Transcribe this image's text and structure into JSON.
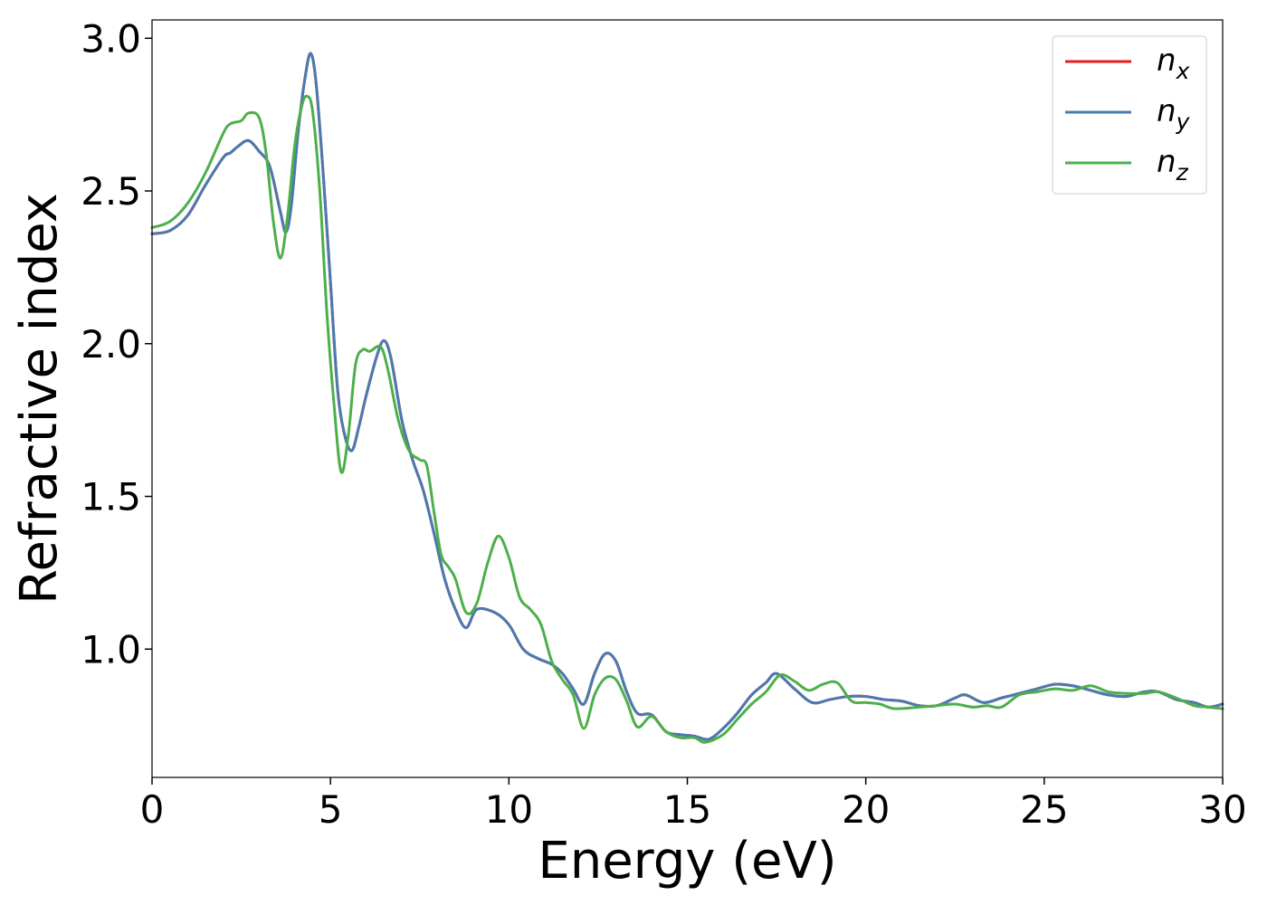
{
  "chart_data": {
    "type": "line",
    "title": "",
    "xlabel": "Energy (eV)",
    "ylabel": "Refractive index",
    "xlim": [
      0,
      30
    ],
    "ylim": [
      0.58,
      3.06
    ],
    "x_ticks": [
      "0",
      "5",
      "10",
      "15",
      "20",
      "25",
      "30"
    ],
    "y_ticks": [
      "1.0",
      "1.5",
      "2.0",
      "2.5",
      "3.0"
    ],
    "grid": false,
    "legend_position": "top-right",
    "series": [
      {
        "name": "n_x",
        "label_base": "n",
        "label_sub": "x",
        "color": "#e41a1c",
        "points": [
          [
            0,
            2.36
          ],
          [
            0.5,
            2.37
          ],
          [
            1.0,
            2.42
          ],
          [
            1.5,
            2.52
          ],
          [
            2.0,
            2.61
          ],
          [
            2.2,
            2.625
          ],
          [
            2.4,
            2.645
          ],
          [
            2.7,
            2.665
          ],
          [
            3.0,
            2.63
          ],
          [
            3.3,
            2.58
          ],
          [
            3.6,
            2.43
          ],
          [
            3.75,
            2.365
          ],
          [
            3.9,
            2.45
          ],
          [
            4.1,
            2.7
          ],
          [
            4.3,
            2.88
          ],
          [
            4.45,
            2.95
          ],
          [
            4.6,
            2.85
          ],
          [
            4.8,
            2.55
          ],
          [
            5.0,
            2.2
          ],
          [
            5.2,
            1.85
          ],
          [
            5.4,
            1.7
          ],
          [
            5.6,
            1.65
          ],
          [
            5.8,
            1.73
          ],
          [
            6.0,
            1.83
          ],
          [
            6.3,
            1.96
          ],
          [
            6.5,
            2.01
          ],
          [
            6.7,
            1.95
          ],
          [
            7.0,
            1.75
          ],
          [
            7.3,
            1.62
          ],
          [
            7.6,
            1.52
          ],
          [
            7.9,
            1.38
          ],
          [
            8.2,
            1.23
          ],
          [
            8.5,
            1.13
          ],
          [
            8.8,
            1.07
          ],
          [
            9.1,
            1.13
          ],
          [
            9.6,
            1.12
          ],
          [
            10.0,
            1.08
          ],
          [
            10.4,
            1.0
          ],
          [
            10.8,
            0.97
          ],
          [
            11.2,
            0.95
          ],
          [
            11.5,
            0.92
          ],
          [
            11.8,
            0.87
          ],
          [
            12.1,
            0.82
          ],
          [
            12.4,
            0.92
          ],
          [
            12.7,
            0.985
          ],
          [
            13.0,
            0.96
          ],
          [
            13.3,
            0.86
          ],
          [
            13.6,
            0.79
          ],
          [
            14.0,
            0.785
          ],
          [
            14.4,
            0.73
          ],
          [
            14.8,
            0.72
          ],
          [
            15.2,
            0.715
          ],
          [
            15.6,
            0.705
          ],
          [
            16.0,
            0.74
          ],
          [
            16.4,
            0.79
          ],
          [
            16.8,
            0.85
          ],
          [
            17.2,
            0.89
          ],
          [
            17.5,
            0.92
          ],
          [
            18.0,
            0.87
          ],
          [
            18.5,
            0.825
          ],
          [
            19.0,
            0.835
          ],
          [
            19.5,
            0.845
          ],
          [
            20.0,
            0.845
          ],
          [
            20.5,
            0.835
          ],
          [
            21.0,
            0.83
          ],
          [
            21.5,
            0.815
          ],
          [
            22.0,
            0.815
          ],
          [
            22.5,
            0.84
          ],
          [
            22.8,
            0.85
          ],
          [
            23.3,
            0.825
          ],
          [
            23.8,
            0.84
          ],
          [
            24.3,
            0.855
          ],
          [
            24.8,
            0.87
          ],
          [
            25.3,
            0.885
          ],
          [
            25.8,
            0.88
          ],
          [
            26.3,
            0.865
          ],
          [
            26.8,
            0.85
          ],
          [
            27.3,
            0.845
          ],
          [
            27.8,
            0.86
          ],
          [
            28.2,
            0.86
          ],
          [
            28.7,
            0.835
          ],
          [
            29.2,
            0.825
          ],
          [
            29.6,
            0.81
          ],
          [
            30.0,
            0.82
          ]
        ]
      },
      {
        "name": "n_y",
        "label_base": "n",
        "label_sub": "y",
        "color": "#4a7ab0",
        "points": [
          [
            0,
            2.36
          ],
          [
            0.5,
            2.37
          ],
          [
            1.0,
            2.42
          ],
          [
            1.5,
            2.52
          ],
          [
            2.0,
            2.61
          ],
          [
            2.2,
            2.625
          ],
          [
            2.4,
            2.645
          ],
          [
            2.7,
            2.665
          ],
          [
            3.0,
            2.63
          ],
          [
            3.3,
            2.58
          ],
          [
            3.6,
            2.43
          ],
          [
            3.75,
            2.365
          ],
          [
            3.9,
            2.45
          ],
          [
            4.1,
            2.7
          ],
          [
            4.3,
            2.88
          ],
          [
            4.45,
            2.95
          ],
          [
            4.6,
            2.85
          ],
          [
            4.8,
            2.55
          ],
          [
            5.0,
            2.2
          ],
          [
            5.2,
            1.85
          ],
          [
            5.4,
            1.7
          ],
          [
            5.6,
            1.65
          ],
          [
            5.8,
            1.73
          ],
          [
            6.0,
            1.83
          ],
          [
            6.3,
            1.96
          ],
          [
            6.5,
            2.01
          ],
          [
            6.7,
            1.95
          ],
          [
            7.0,
            1.75
          ],
          [
            7.3,
            1.62
          ],
          [
            7.6,
            1.52
          ],
          [
            7.9,
            1.38
          ],
          [
            8.2,
            1.23
          ],
          [
            8.5,
            1.13
          ],
          [
            8.8,
            1.07
          ],
          [
            9.1,
            1.13
          ],
          [
            9.6,
            1.12
          ],
          [
            10.0,
            1.08
          ],
          [
            10.4,
            1.0
          ],
          [
            10.8,
            0.97
          ],
          [
            11.2,
            0.95
          ],
          [
            11.5,
            0.92
          ],
          [
            11.8,
            0.87
          ],
          [
            12.1,
            0.82
          ],
          [
            12.4,
            0.92
          ],
          [
            12.7,
            0.985
          ],
          [
            13.0,
            0.96
          ],
          [
            13.3,
            0.86
          ],
          [
            13.6,
            0.79
          ],
          [
            14.0,
            0.785
          ],
          [
            14.4,
            0.73
          ],
          [
            14.8,
            0.72
          ],
          [
            15.2,
            0.715
          ],
          [
            15.6,
            0.705
          ],
          [
            16.0,
            0.74
          ],
          [
            16.4,
            0.79
          ],
          [
            16.8,
            0.85
          ],
          [
            17.2,
            0.89
          ],
          [
            17.5,
            0.92
          ],
          [
            18.0,
            0.87
          ],
          [
            18.5,
            0.825
          ],
          [
            19.0,
            0.835
          ],
          [
            19.5,
            0.845
          ],
          [
            20.0,
            0.845
          ],
          [
            20.5,
            0.835
          ],
          [
            21.0,
            0.83
          ],
          [
            21.5,
            0.815
          ],
          [
            22.0,
            0.815
          ],
          [
            22.5,
            0.84
          ],
          [
            22.8,
            0.85
          ],
          [
            23.3,
            0.825
          ],
          [
            23.8,
            0.84
          ],
          [
            24.3,
            0.855
          ],
          [
            24.8,
            0.87
          ],
          [
            25.3,
            0.885
          ],
          [
            25.8,
            0.88
          ],
          [
            26.3,
            0.865
          ],
          [
            26.8,
            0.85
          ],
          [
            27.3,
            0.845
          ],
          [
            27.8,
            0.86
          ],
          [
            28.2,
            0.86
          ],
          [
            28.7,
            0.835
          ],
          [
            29.2,
            0.825
          ],
          [
            29.6,
            0.81
          ],
          [
            30.0,
            0.82
          ]
        ]
      },
      {
        "name": "n_z",
        "label_base": "n",
        "label_sub": "z",
        "color": "#4daf4a",
        "points": [
          [
            0,
            2.38
          ],
          [
            0.5,
            2.4
          ],
          [
            1.0,
            2.46
          ],
          [
            1.5,
            2.56
          ],
          [
            2.0,
            2.69
          ],
          [
            2.2,
            2.72
          ],
          [
            2.5,
            2.73
          ],
          [
            2.7,
            2.755
          ],
          [
            3.0,
            2.74
          ],
          [
            3.2,
            2.62
          ],
          [
            3.4,
            2.4
          ],
          [
            3.6,
            2.28
          ],
          [
            3.8,
            2.42
          ],
          [
            4.0,
            2.65
          ],
          [
            4.2,
            2.78
          ],
          [
            4.35,
            2.81
          ],
          [
            4.5,
            2.76
          ],
          [
            4.7,
            2.5
          ],
          [
            4.9,
            2.1
          ],
          [
            5.1,
            1.8
          ],
          [
            5.3,
            1.58
          ],
          [
            5.5,
            1.7
          ],
          [
            5.7,
            1.93
          ],
          [
            5.9,
            1.98
          ],
          [
            6.1,
            1.975
          ],
          [
            6.4,
            1.99
          ],
          [
            6.6,
            1.92
          ],
          [
            6.9,
            1.75
          ],
          [
            7.2,
            1.65
          ],
          [
            7.5,
            1.62
          ],
          [
            7.7,
            1.6
          ],
          [
            7.9,
            1.45
          ],
          [
            8.1,
            1.31
          ],
          [
            8.3,
            1.27
          ],
          [
            8.5,
            1.23
          ],
          [
            8.8,
            1.12
          ],
          [
            9.1,
            1.15
          ],
          [
            9.4,
            1.28
          ],
          [
            9.7,
            1.37
          ],
          [
            10.0,
            1.3
          ],
          [
            10.3,
            1.17
          ],
          [
            10.6,
            1.13
          ],
          [
            10.9,
            1.08
          ],
          [
            11.2,
            0.96
          ],
          [
            11.5,
            0.9
          ],
          [
            11.8,
            0.85
          ],
          [
            12.1,
            0.74
          ],
          [
            12.4,
            0.85
          ],
          [
            12.7,
            0.905
          ],
          [
            13.0,
            0.9
          ],
          [
            13.3,
            0.83
          ],
          [
            13.6,
            0.745
          ],
          [
            14.0,
            0.78
          ],
          [
            14.4,
            0.73
          ],
          [
            14.8,
            0.71
          ],
          [
            15.2,
            0.71
          ],
          [
            15.5,
            0.695
          ],
          [
            16.0,
            0.72
          ],
          [
            16.4,
            0.77
          ],
          [
            16.8,
            0.82
          ],
          [
            17.2,
            0.86
          ],
          [
            17.6,
            0.915
          ],
          [
            18.0,
            0.895
          ],
          [
            18.4,
            0.865
          ],
          [
            18.8,
            0.885
          ],
          [
            19.2,
            0.89
          ],
          [
            19.6,
            0.83
          ],
          [
            20.0,
            0.825
          ],
          [
            20.4,
            0.82
          ],
          [
            20.8,
            0.805
          ],
          [
            21.5,
            0.81
          ],
          [
            22.0,
            0.815
          ],
          [
            22.5,
            0.82
          ],
          [
            23.0,
            0.81
          ],
          [
            23.4,
            0.815
          ],
          [
            23.8,
            0.81
          ],
          [
            24.3,
            0.85
          ],
          [
            24.8,
            0.86
          ],
          [
            25.3,
            0.87
          ],
          [
            25.8,
            0.865
          ],
          [
            26.3,
            0.88
          ],
          [
            26.8,
            0.86
          ],
          [
            27.3,
            0.855
          ],
          [
            27.8,
            0.855
          ],
          [
            28.2,
            0.86
          ],
          [
            28.7,
            0.84
          ],
          [
            29.2,
            0.815
          ],
          [
            29.6,
            0.81
          ],
          [
            30.0,
            0.805
          ]
        ]
      }
    ]
  }
}
